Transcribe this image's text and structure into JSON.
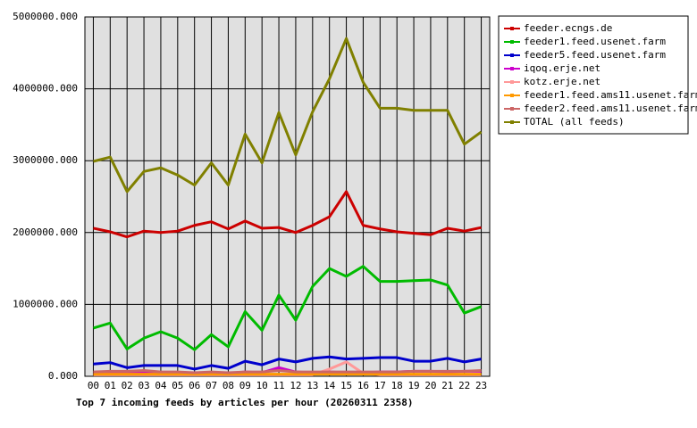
{
  "chart_data": {
    "type": "line",
    "title": "Top 7 incoming feeds by articles per hour (20260311 2358)",
    "categories": [
      "00",
      "01",
      "02",
      "03",
      "04",
      "05",
      "06",
      "07",
      "08",
      "09",
      "10",
      "11",
      "12",
      "13",
      "14",
      "15",
      "16",
      "17",
      "18",
      "19",
      "20",
      "21",
      "22",
      "23"
    ],
    "ylim": [
      0,
      5000000
    ],
    "yticks": [
      {
        "value": 0,
        "label": "0.000"
      },
      {
        "value": 1000000,
        "label": "1000000.000"
      },
      {
        "value": 2000000,
        "label": "2000000.000"
      },
      {
        "value": 3000000,
        "label": "3000000.000"
      },
      {
        "value": 4000000,
        "label": "4000000.000"
      },
      {
        "value": 5000000,
        "label": "5000000.000"
      }
    ],
    "grid": true,
    "legend": "right",
    "series": [
      {
        "name": "feeder.ecngs.de",
        "color": "#cc0000",
        "values": [
          2060000,
          2010000,
          1940000,
          2020000,
          2000000,
          2020000,
          2100000,
          2150000,
          2050000,
          2160000,
          2060000,
          2070000,
          2000000,
          2100000,
          2220000,
          2570000,
          2100000,
          2050000,
          2010000,
          1990000,
          1970000,
          2060000,
          2020000,
          2070000
        ]
      },
      {
        "name": "feeder1.feed.usenet.farm",
        "color": "#00bb00",
        "values": [
          670000,
          740000,
          380000,
          530000,
          620000,
          530000,
          370000,
          580000,
          410000,
          900000,
          640000,
          1130000,
          780000,
          1250000,
          1500000,
          1390000,
          1530000,
          1320000,
          1320000,
          1330000,
          1340000,
          1270000,
          880000,
          970000
        ]
      },
      {
        "name": "feeder5.feed.usenet.farm",
        "color": "#0000cc",
        "values": [
          170000,
          190000,
          120000,
          150000,
          150000,
          150000,
          100000,
          150000,
          110000,
          210000,
          160000,
          240000,
          200000,
          250000,
          270000,
          240000,
          250000,
          260000,
          260000,
          210000,
          210000,
          250000,
          200000,
          240000
        ]
      },
      {
        "name": "iqoq.erje.net",
        "color": "#cc00cc",
        "values": [
          50000,
          50000,
          50000,
          60000,
          50000,
          50000,
          40000,
          50000,
          40000,
          60000,
          50000,
          120000,
          60000,
          50000,
          60000,
          50000,
          50000,
          60000,
          60000,
          70000,
          70000,
          60000,
          70000,
          70000
        ]
      },
      {
        "name": "kotz.erje.net",
        "color": "#ff9999",
        "values": [
          20000,
          20000,
          20000,
          20000,
          20000,
          20000,
          20000,
          20000,
          20000,
          20000,
          20000,
          20000,
          20000,
          20000,
          100000,
          200000,
          40000,
          20000,
          20000,
          20000,
          20000,
          20000,
          20000,
          20000
        ]
      },
      {
        "name": "feeder1.feed.ams11.usenet.farm",
        "color": "#ff9900",
        "values": [
          30000,
          30000,
          30000,
          30000,
          30000,
          30000,
          30000,
          30000,
          30000,
          30000,
          30000,
          30000,
          30000,
          30000,
          30000,
          30000,
          30000,
          30000,
          30000,
          30000,
          30000,
          30000,
          30000,
          30000
        ]
      },
      {
        "name": "feeder2.feed.ams11.usenet.farm",
        "color": "#cc6666",
        "values": [
          60000,
          70000,
          70000,
          80000,
          60000,
          60000,
          50000,
          60000,
          50000,
          60000,
          60000,
          80000,
          60000,
          60000,
          60000,
          60000,
          60000,
          60000,
          60000,
          70000,
          70000,
          70000,
          70000,
          80000
        ]
      },
      {
        "name": "TOTAL (all feeds)",
        "color": "#808000",
        "values": [
          2990000,
          3050000,
          2570000,
          2850000,
          2900000,
          2800000,
          2660000,
          2970000,
          2660000,
          3370000,
          2970000,
          3670000,
          3080000,
          3680000,
          4140000,
          4700000,
          4090000,
          3730000,
          3730000,
          3700000,
          3700000,
          3700000,
          3230000,
          3400000
        ]
      }
    ]
  }
}
